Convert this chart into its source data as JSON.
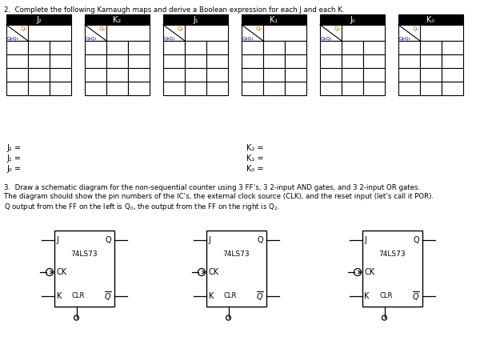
{
  "title_q2": "2.  Complete the following Karnaugh maps and derive a Boolean expression for each J and each K.",
  "kmap_titles": [
    "J₂",
    "K₂",
    "J₁",
    "K₁",
    "J₀",
    "K₀"
  ],
  "kmap_col_label_color": "#cc6600",
  "kmap_row_label_color": "#0000cc",
  "expr_left": [
    "J₂ =",
    "J₁ =",
    "J₀ ="
  ],
  "expr_right": [
    "K₂ =",
    "K₁ =",
    "K₀ ="
  ],
  "title_q3_line1": "3.  Draw a schematic diagram for the non-sequential counter using 3 FF’s, 3 2-input AND gates, and 3 2-input OR gates.",
  "title_q3_line2": "The diagram should show the pin numbers of the IC’s, the external clock source (CLK), and the reset input (let’s call it POR).",
  "title_q3_line3": "Q output from the FF on the left is Q₀, the output from the FF on the right is Q₂.",
  "ff_label": "74LS73",
  "bg_color": "#ffffff",
  "text_color": "#000000"
}
